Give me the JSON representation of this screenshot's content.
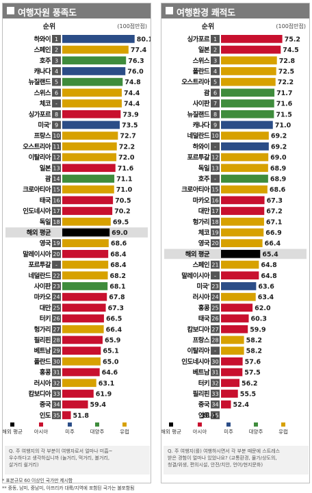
{
  "colors": {
    "overseas_avg": "#000000",
    "asia": "#c8102e",
    "americas": "#2b4d87",
    "oceania": "#3f8c3c",
    "europe": "#d7a100",
    "highlight_row": "#dcdcdc",
    "title_bar": "#7b7b7b"
  },
  "legend": [
    {
      "key": "overseas_avg",
      "label": "해외 평균"
    },
    {
      "key": "asia",
      "label": "아시아"
    },
    {
      "key": "americas",
      "label": "미주"
    },
    {
      "key": "oceania",
      "label": "대양주"
    },
    {
      "key": "europe",
      "label": "유럽"
    }
  ],
  "footnotes": [
    "* 표본규모 60 이상인 국가만 제시함",
    "** 중동, 남미, 중남미, 아프리카 대륙/지역에 포함된 국가는 불포함됨"
  ],
  "chart_data": [
    {
      "type": "bar",
      "title": "여행자원 풍족도",
      "rank_header": "순위",
      "scale_note": "(100점만점)",
      "xlim": [
        0,
        100
      ],
      "note_lines": [
        "Q. 주 여행지의 각 부분이 여행자로서 얼마나 미흡~",
        "우수하다고 생각하십니까 (놀거리, 먹거리, 볼거리,",
        "살거리 쉴거리)"
      ],
      "items": [
        {
          "rank": "1",
          "name": "하와이",
          "value": 80.1,
          "region": "americas"
        },
        {
          "rank": "2",
          "name": "스페인",
          "value": 77.4,
          "region": "europe"
        },
        {
          "rank": "3",
          "name": "호주",
          "value": 76.3,
          "region": "oceania"
        },
        {
          "rank": "4",
          "name": "캐나다",
          "value": 76.0,
          "region": "americas"
        },
        {
          "rank": "5",
          "name": "뉴질랜드",
          "value": 74.8,
          "region": "oceania"
        },
        {
          "rank": "6",
          "name": "스위스",
          "value": 74.4,
          "region": "europe"
        },
        {
          "rank": "-",
          "name": "체코",
          "value": 74.4,
          "region": "europe"
        },
        {
          "rank": "8",
          "name": "싱가포르",
          "value": 73.9,
          "region": "asia"
        },
        {
          "rank": "9",
          "name": "미국'",
          "value": 73.5,
          "region": "americas"
        },
        {
          "rank": "10",
          "name": "프랑스",
          "value": 72.7,
          "region": "europe"
        },
        {
          "rank": "11",
          "name": "오스트리아",
          "value": 72.2,
          "region": "europe"
        },
        {
          "rank": "12",
          "name": "이탈리아",
          "value": 72.0,
          "region": "europe"
        },
        {
          "rank": "13",
          "name": "일본",
          "value": 71.6,
          "region": "asia"
        },
        {
          "rank": "14",
          "name": "괌",
          "value": 71.1,
          "region": "oceania"
        },
        {
          "rank": "15",
          "name": "크로아티아",
          "value": 71.0,
          "region": "europe"
        },
        {
          "rank": "16",
          "name": "태국",
          "value": 70.5,
          "region": "asia"
        },
        {
          "rank": "17",
          "name": "인도네시아",
          "value": 70.2,
          "region": "asia"
        },
        {
          "rank": "18",
          "name": "독일",
          "value": 69.5,
          "region": "europe"
        },
        {
          "rank": "",
          "name": "해외 평균",
          "value": 69.0,
          "region": "overseas_avg",
          "highlight": true
        },
        {
          "rank": "19",
          "name": "영국",
          "value": 68.6,
          "region": "europe"
        },
        {
          "rank": "20",
          "name": "말레이시아",
          "value": 68.4,
          "region": "asia"
        },
        {
          "rank": "-",
          "name": "포르투갈",
          "value": 68.4,
          "region": "europe"
        },
        {
          "rank": "22",
          "name": "네덜란드",
          "value": 68.2,
          "region": "europe"
        },
        {
          "rank": "23",
          "name": "사이판",
          "value": 68.1,
          "region": "oceania"
        },
        {
          "rank": "24",
          "name": "마카오",
          "value": 67.8,
          "region": "asia"
        },
        {
          "rank": "25",
          "name": "대만",
          "value": 67.3,
          "region": "asia"
        },
        {
          "rank": "26",
          "name": "터키",
          "value": 66.5,
          "region": "asia"
        },
        {
          "rank": "27",
          "name": "헝가리",
          "value": 66.4,
          "region": "europe"
        },
        {
          "rank": "28",
          "name": "필리핀",
          "value": 65.9,
          "region": "asia"
        },
        {
          "rank": "29",
          "name": "베트남",
          "value": 65.1,
          "region": "asia"
        },
        {
          "rank": "30",
          "name": "폴란드",
          "value": 65.0,
          "region": "europe"
        },
        {
          "rank": "31",
          "name": "홍콩",
          "value": 64.6,
          "region": "asia"
        },
        {
          "rank": "32",
          "name": "러시아",
          "value": 63.1,
          "region": "europe"
        },
        {
          "rank": "33",
          "name": "캄보디아",
          "value": 61.9,
          "region": "asia"
        },
        {
          "rank": "34",
          "name": "중국",
          "value": 59.4,
          "region": "asia"
        },
        {
          "rank": "35",
          "name": "인도",
          "value": 51.8,
          "region": "asia"
        }
      ]
    },
    {
      "type": "bar",
      "title": "여행환경 쾌적도",
      "rank_header": "순위",
      "scale_note": "(100점만점)",
      "xlim": [
        0,
        100
      ],
      "note_lines": [
        "Q. 주 여행지(를) 여행하시면서 각 부분 때문에 스트레스",
        "받은 경험이 얼마나 있었나요? (교통환경, 물가/상도의,",
        "청결/위생, 편의시설, 안전/치안, 언어/현지문화)"
      ],
      "items": [
        {
          "rank": "1",
          "name": "싱가포르",
          "value": 75.2,
          "region": "asia"
        },
        {
          "rank": "2",
          "name": "일본",
          "value": 74.5,
          "region": "asia"
        },
        {
          "rank": "3",
          "name": "스위스",
          "value": 72.8,
          "region": "europe"
        },
        {
          "rank": "4",
          "name": "폴란드",
          "value": 72.5,
          "region": "europe"
        },
        {
          "rank": "5",
          "name": "오스트리아",
          "value": 72.2,
          "region": "europe"
        },
        {
          "rank": "6",
          "name": "괌",
          "value": 71.7,
          "region": "oceania"
        },
        {
          "rank": "7",
          "name": "사이판",
          "value": 71.6,
          "region": "oceania"
        },
        {
          "rank": "8",
          "name": "뉴질랜드",
          "value": 71.5,
          "region": "oceania"
        },
        {
          "rank": "9",
          "name": "캐나다",
          "value": 71.0,
          "region": "americas"
        },
        {
          "rank": "10",
          "name": "네덜란드",
          "value": 69.2,
          "region": "europe"
        },
        {
          "rank": "-",
          "name": "하와이",
          "value": 69.2,
          "region": "americas"
        },
        {
          "rank": "12",
          "name": "포르투갈",
          "value": 69.0,
          "region": "europe"
        },
        {
          "rank": "13",
          "name": "독일",
          "value": 68.9,
          "region": "europe"
        },
        {
          "rank": "-",
          "name": "호주",
          "value": 68.9,
          "region": "oceania"
        },
        {
          "rank": "15",
          "name": "크로아티아",
          "value": 68.6,
          "region": "europe"
        },
        {
          "rank": "16",
          "name": "마카오",
          "value": 67.3,
          "region": "asia"
        },
        {
          "rank": "17",
          "name": "대만",
          "value": 67.2,
          "region": "asia"
        },
        {
          "rank": "18",
          "name": "헝가리",
          "value": 67.1,
          "region": "europe"
        },
        {
          "rank": "19",
          "name": "체코",
          "value": 66.9,
          "region": "europe"
        },
        {
          "rank": "20",
          "name": "영국",
          "value": 66.4,
          "region": "europe"
        },
        {
          "rank": "",
          "name": "해외 평균",
          "value": 65.4,
          "region": "overseas_avg",
          "highlight": true
        },
        {
          "rank": "21",
          "name": "스페인",
          "value": 64.8,
          "region": "europe"
        },
        {
          "rank": "-",
          "name": "말레이시아",
          "value": 64.8,
          "region": "asia"
        },
        {
          "rank": "23",
          "name": "미국'",
          "value": 63.6,
          "region": "americas"
        },
        {
          "rank": "24",
          "name": "러시아",
          "value": 63.4,
          "region": "europe"
        },
        {
          "rank": "25",
          "name": "홍콩",
          "value": 62.0,
          "region": "asia"
        },
        {
          "rank": "26",
          "name": "태국",
          "value": 60.3,
          "region": "asia"
        },
        {
          "rank": "27",
          "name": "캄보디아",
          "value": 59.9,
          "region": "asia"
        },
        {
          "rank": "28",
          "name": "프랑스",
          "value": 58.2,
          "region": "europe"
        },
        {
          "rank": "-",
          "name": "이탈리아",
          "value": 58.2,
          "region": "europe"
        },
        {
          "rank": "30",
          "name": "인도네시아",
          "value": 57.6,
          "region": "asia"
        },
        {
          "rank": "31",
          "name": "베트남",
          "value": 57.5,
          "region": "asia"
        },
        {
          "rank": "32",
          "name": "터키",
          "value": 56.2,
          "region": "asia"
        },
        {
          "rank": "33",
          "name": "필리핀",
          "value": 55.5,
          "region": "asia"
        },
        {
          "rank": "34",
          "name": "중국",
          "value": 52.4,
          "region": "asia"
        },
        {
          "rank": "35",
          "name": "인도",
          "value": 38.1,
          "region": "asia"
        }
      ]
    }
  ]
}
